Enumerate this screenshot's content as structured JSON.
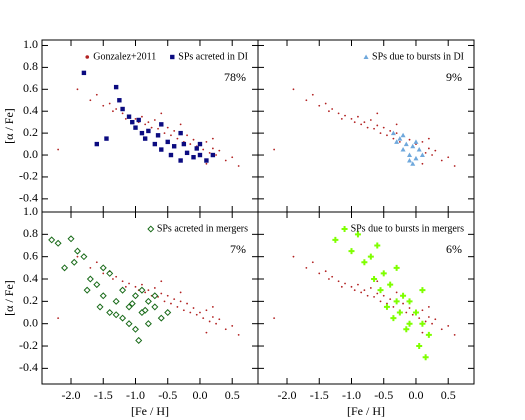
{
  "chart_data": [
    {
      "type": "scatter",
      "ylabel": "[α / Fe]",
      "annotation": "78%",
      "xlim": [
        -2.45,
        0.9
      ],
      "ylim": [
        -0.52,
        1.05
      ],
      "xticks": [
        -2,
        -1.5,
        -1,
        -0.5,
        0,
        0.5
      ],
      "yticks": [
        -0.4,
        -0.2,
        {
          "value": 0,
          "label": "0.0"
        },
        0.2,
        0.4,
        0.6,
        0.8,
        {
          "value": 1,
          "label": "1.0"
        }
      ],
      "series": [
        {
          "name": "Gonzalez+2011",
          "marker": "dot",
          "color": "#b22222",
          "x": [
            -2.2,
            -1.9,
            -1.7,
            -1.6,
            -1.5,
            -1.4,
            -1.35,
            -1.3,
            -1.2,
            -1.15,
            -1.1,
            -1.0,
            -0.95,
            -0.9,
            -0.85,
            -0.8,
            -0.75,
            -0.7,
            -0.65,
            -0.6,
            -0.55,
            -0.5,
            -0.45,
            -0.4,
            -0.35,
            -0.3,
            -0.25,
            -0.2,
            -0.15,
            -0.1,
            -0.05,
            0.0,
            0.05,
            0.1,
            0.15,
            0.2,
            0.25,
            0.3,
            0.4,
            0.5,
            0.6,
            -0.3,
            0.1,
            -0.6,
            0.2
          ],
          "y": [
            0.05,
            0.6,
            0.5,
            0.55,
            0.45,
            0.47,
            0.4,
            0.42,
            0.38,
            0.33,
            0.36,
            0.33,
            0.3,
            0.35,
            0.28,
            0.3,
            0.25,
            0.32,
            0.24,
            0.27,
            0.2,
            0.25,
            0.18,
            0.22,
            0.15,
            0.2,
            0.12,
            0.18,
            0.1,
            0.14,
            0.08,
            0.1,
            0.05,
            0.12,
            0.02,
            0.06,
            0.0,
            0.04,
            -0.05,
            -0.02,
            -0.1,
            0.28,
            -0.08,
            0.38,
            0.15
          ]
        },
        {
          "name": "SPs acreted in DI",
          "marker": "square",
          "color": "#0b0b80",
          "x": [
            -1.8,
            -1.3,
            -1.25,
            -1.2,
            -1.1,
            -1.05,
            -1.0,
            -0.95,
            -0.9,
            -0.85,
            -0.8,
            -0.7,
            -0.65,
            -0.6,
            -0.5,
            -0.45,
            -0.4,
            -0.3,
            -0.25,
            -0.2,
            -0.1,
            -0.05,
            0.0,
            0.1,
            0.2,
            -0.6,
            -0.3,
            0.0,
            -1.6,
            -1.45
          ],
          "y": [
            0.75,
            0.62,
            0.5,
            0.42,
            0.35,
            0.3,
            0.25,
            0.32,
            0.2,
            0.15,
            0.22,
            0.1,
            0.18,
            0.05,
            0.12,
            0.0,
            0.08,
            -0.05,
            0.1,
            0.02,
            -0.02,
            0.06,
            0.0,
            -0.05,
            0.0,
            0.28,
            0.2,
            0.1,
            0.1,
            0.15
          ]
        }
      ]
    },
    {
      "type": "scatter",
      "annotation": "9%",
      "xlim": [
        -2.45,
        0.9
      ],
      "ylim": [
        -0.52,
        1.05
      ],
      "xticks": [
        -2,
        -1.5,
        -1,
        -0.5,
        0,
        0.5
      ],
      "yticks": [
        -0.4,
        -0.2,
        0,
        0.2,
        0.4,
        0.6,
        0.8,
        1
      ],
      "series": [
        {
          "marker": "dot",
          "color": "#b22222",
          "x": [
            -2.2,
            -1.9,
            -1.7,
            -1.6,
            -1.5,
            -1.4,
            -1.35,
            -1.3,
            -1.2,
            -1.15,
            -1.1,
            -1.0,
            -0.95,
            -0.9,
            -0.85,
            -0.8,
            -0.75,
            -0.7,
            -0.65,
            -0.6,
            -0.55,
            -0.5,
            -0.45,
            -0.4,
            -0.35,
            -0.3,
            -0.25,
            -0.2,
            -0.15,
            -0.1,
            -0.05,
            0.0,
            0.05,
            0.1,
            0.15,
            0.2,
            0.25,
            0.3,
            0.4,
            0.5,
            0.6,
            -0.3,
            0.1,
            -0.6,
            0.2
          ],
          "y": [
            0.05,
            0.6,
            0.5,
            0.55,
            0.45,
            0.47,
            0.4,
            0.42,
            0.38,
            0.33,
            0.36,
            0.33,
            0.3,
            0.35,
            0.28,
            0.3,
            0.25,
            0.32,
            0.24,
            0.27,
            0.2,
            0.25,
            0.18,
            0.22,
            0.15,
            0.2,
            0.12,
            0.18,
            0.1,
            0.14,
            0.08,
            0.1,
            0.05,
            0.12,
            0.02,
            0.06,
            0.0,
            0.04,
            -0.05,
            -0.02,
            -0.1,
            0.28,
            -0.08,
            0.38,
            0.15
          ]
        },
        {
          "name": "SPs due to bursts in DI",
          "marker": "triangle",
          "color": "#6fa8dc",
          "x": [
            -0.35,
            -0.3,
            -0.25,
            -0.2,
            -0.15,
            -0.1,
            -0.05,
            0.0,
            0.05,
            0.1,
            -0.2,
            -0.1,
            0.0,
            -0.05
          ],
          "y": [
            0.2,
            0.12,
            0.15,
            0.05,
            0.1,
            0.0,
            0.08,
            -0.03,
            0.05,
            0.0,
            0.18,
            -0.05,
            0.12,
            -0.08
          ]
        }
      ]
    },
    {
      "type": "scatter",
      "ylabel": "[α / Fe]",
      "xlabel": "[Fe / H]",
      "annotation": "7%",
      "xlim": [
        -2.45,
        0.9
      ],
      "ylim": [
        -0.54,
        1.0
      ],
      "xticks": [
        {
          "value": -2,
          "label": "-2.0"
        },
        -1.5,
        {
          "value": -1,
          "label": "-1.0"
        },
        -0.5,
        {
          "value": 0,
          "label": "0.0"
        },
        0.5
      ],
      "yticks": [
        -0.4,
        -0.2,
        {
          "value": 0,
          "label": "0.0"
        },
        0.2,
        0.4,
        0.6,
        0.8,
        {
          "value": 1,
          "label": "1.0"
        }
      ],
      "series": [
        {
          "marker": "dot",
          "color": "#b22222",
          "x": [
            -2.2,
            -1.9,
            -1.7,
            -1.6,
            -1.5,
            -1.4,
            -1.35,
            -1.3,
            -1.2,
            -1.15,
            -1.1,
            -1.0,
            -0.95,
            -0.9,
            -0.85,
            -0.8,
            -0.75,
            -0.7,
            -0.65,
            -0.6,
            -0.55,
            -0.5,
            -0.45,
            -0.4,
            -0.35,
            -0.3,
            -0.25,
            -0.2,
            -0.15,
            -0.1,
            -0.05,
            0.0,
            0.05,
            0.1,
            0.15,
            0.2,
            0.25,
            0.3,
            0.4,
            0.5,
            0.6,
            -0.3,
            0.1,
            -0.6,
            0.2
          ],
          "y": [
            0.05,
            0.6,
            0.5,
            0.55,
            0.45,
            0.47,
            0.4,
            0.42,
            0.38,
            0.33,
            0.36,
            0.33,
            0.3,
            0.35,
            0.28,
            0.3,
            0.25,
            0.32,
            0.24,
            0.27,
            0.2,
            0.25,
            0.18,
            0.22,
            0.15,
            0.2,
            0.12,
            0.18,
            0.1,
            0.14,
            0.08,
            0.1,
            0.05,
            0.12,
            0.02,
            0.06,
            0.0,
            0.04,
            -0.05,
            -0.02,
            -0.1,
            0.28,
            -0.08,
            0.38,
            0.15
          ]
        },
        {
          "name": "SPs acreted in mergers",
          "marker": "diamond",
          "color": "#1a6b1a",
          "x": [
            -2.3,
            -2.2,
            -2.0,
            -1.9,
            -1.95,
            -2.1,
            -1.8,
            -1.7,
            -1.75,
            -1.6,
            -1.5,
            -1.55,
            -1.4,
            -1.3,
            -1.2,
            -1.1,
            -1.0,
            -0.9,
            -0.8,
            -0.7,
            -0.6,
            -0.5,
            -1.0,
            -0.9,
            -1.1,
            -0.8,
            -1.2,
            -0.7,
            -1.5,
            -1.3,
            -1.4,
            -0.95,
            -0.85,
            -1.05
          ],
          "y": [
            0.75,
            0.72,
            0.76,
            0.65,
            0.55,
            0.5,
            0.6,
            0.4,
            0.3,
            0.35,
            0.25,
            0.15,
            0.1,
            0.2,
            0.05,
            0.0,
            -0.05,
            0.1,
            0.2,
            0.15,
            0.05,
            0.1,
            0.25,
            0.3,
            0.15,
            0.0,
            0.3,
            0.25,
            0.5,
            0.08,
            0.45,
            -0.15,
            0.12,
            0.18
          ]
        }
      ]
    },
    {
      "type": "scatter",
      "xlabel": "[Fe / H]",
      "annotation": "6%",
      "xlim": [
        -2.45,
        0.9
      ],
      "ylim": [
        -0.54,
        1.0
      ],
      "xticks": [
        {
          "value": -2,
          "label": "-2.0"
        },
        -1.5,
        {
          "value": -1,
          "label": "-1.0"
        },
        -0.5,
        {
          "value": 0,
          "label": "0.0"
        },
        0.5
      ],
      "yticks": [
        -0.4,
        -0.2,
        0,
        0.2,
        0.4,
        0.6,
        0.8,
        1
      ],
      "series": [
        {
          "marker": "dot",
          "color": "#b22222",
          "x": [
            -2.2,
            -1.9,
            -1.7,
            -1.6,
            -1.5,
            -1.4,
            -1.35,
            -1.3,
            -1.2,
            -1.15,
            -1.1,
            -1.0,
            -0.95,
            -0.9,
            -0.85,
            -0.8,
            -0.75,
            -0.7,
            -0.65,
            -0.6,
            -0.55,
            -0.5,
            -0.45,
            -0.4,
            -0.35,
            -0.3,
            -0.25,
            -0.2,
            -0.15,
            -0.1,
            -0.05,
            0.0,
            0.05,
            0.1,
            0.15,
            0.2,
            0.25,
            0.3,
            0.4,
            0.5,
            0.6,
            -0.3,
            0.1,
            -0.6,
            0.2
          ],
          "y": [
            0.05,
            0.6,
            0.5,
            0.55,
            0.45,
            0.47,
            0.4,
            0.42,
            0.38,
            0.33,
            0.36,
            0.33,
            0.3,
            0.35,
            0.28,
            0.3,
            0.25,
            0.32,
            0.24,
            0.27,
            0.2,
            0.25,
            0.18,
            0.22,
            0.15,
            0.2,
            0.12,
            0.18,
            0.1,
            0.14,
            0.08,
            0.1,
            0.05,
            0.12,
            0.02,
            0.06,
            0.0,
            0.04,
            -0.05,
            -0.02,
            -0.1,
            0.28,
            -0.08,
            0.38,
            0.15
          ]
        },
        {
          "name": "SPs due to bursts in mergers",
          "marker": "cross",
          "color": "#7fff00",
          "x": [
            -1.25,
            -1.0,
            -0.9,
            -0.8,
            -0.7,
            -0.6,
            -0.5,
            -0.4,
            -0.3,
            -0.2,
            -0.1,
            0.0,
            0.1,
            0.2,
            -0.45,
            -0.35,
            -0.55,
            -0.25,
            -0.15,
            0.05,
            -0.65,
            -0.3,
            -0.1,
            0.15,
            0.1
          ],
          "y": [
            0.75,
            0.65,
            0.8,
            0.55,
            0.6,
            0.7,
            0.45,
            0.35,
            0.5,
            0.25,
            0.2,
            0.1,
            0.0,
            -0.1,
            0.15,
            0.05,
            0.3,
            0.1,
            -0.05,
            -0.2,
            0.4,
            0.2,
            0.0,
            -0.3,
            0.3
          ]
        }
      ]
    }
  ]
}
